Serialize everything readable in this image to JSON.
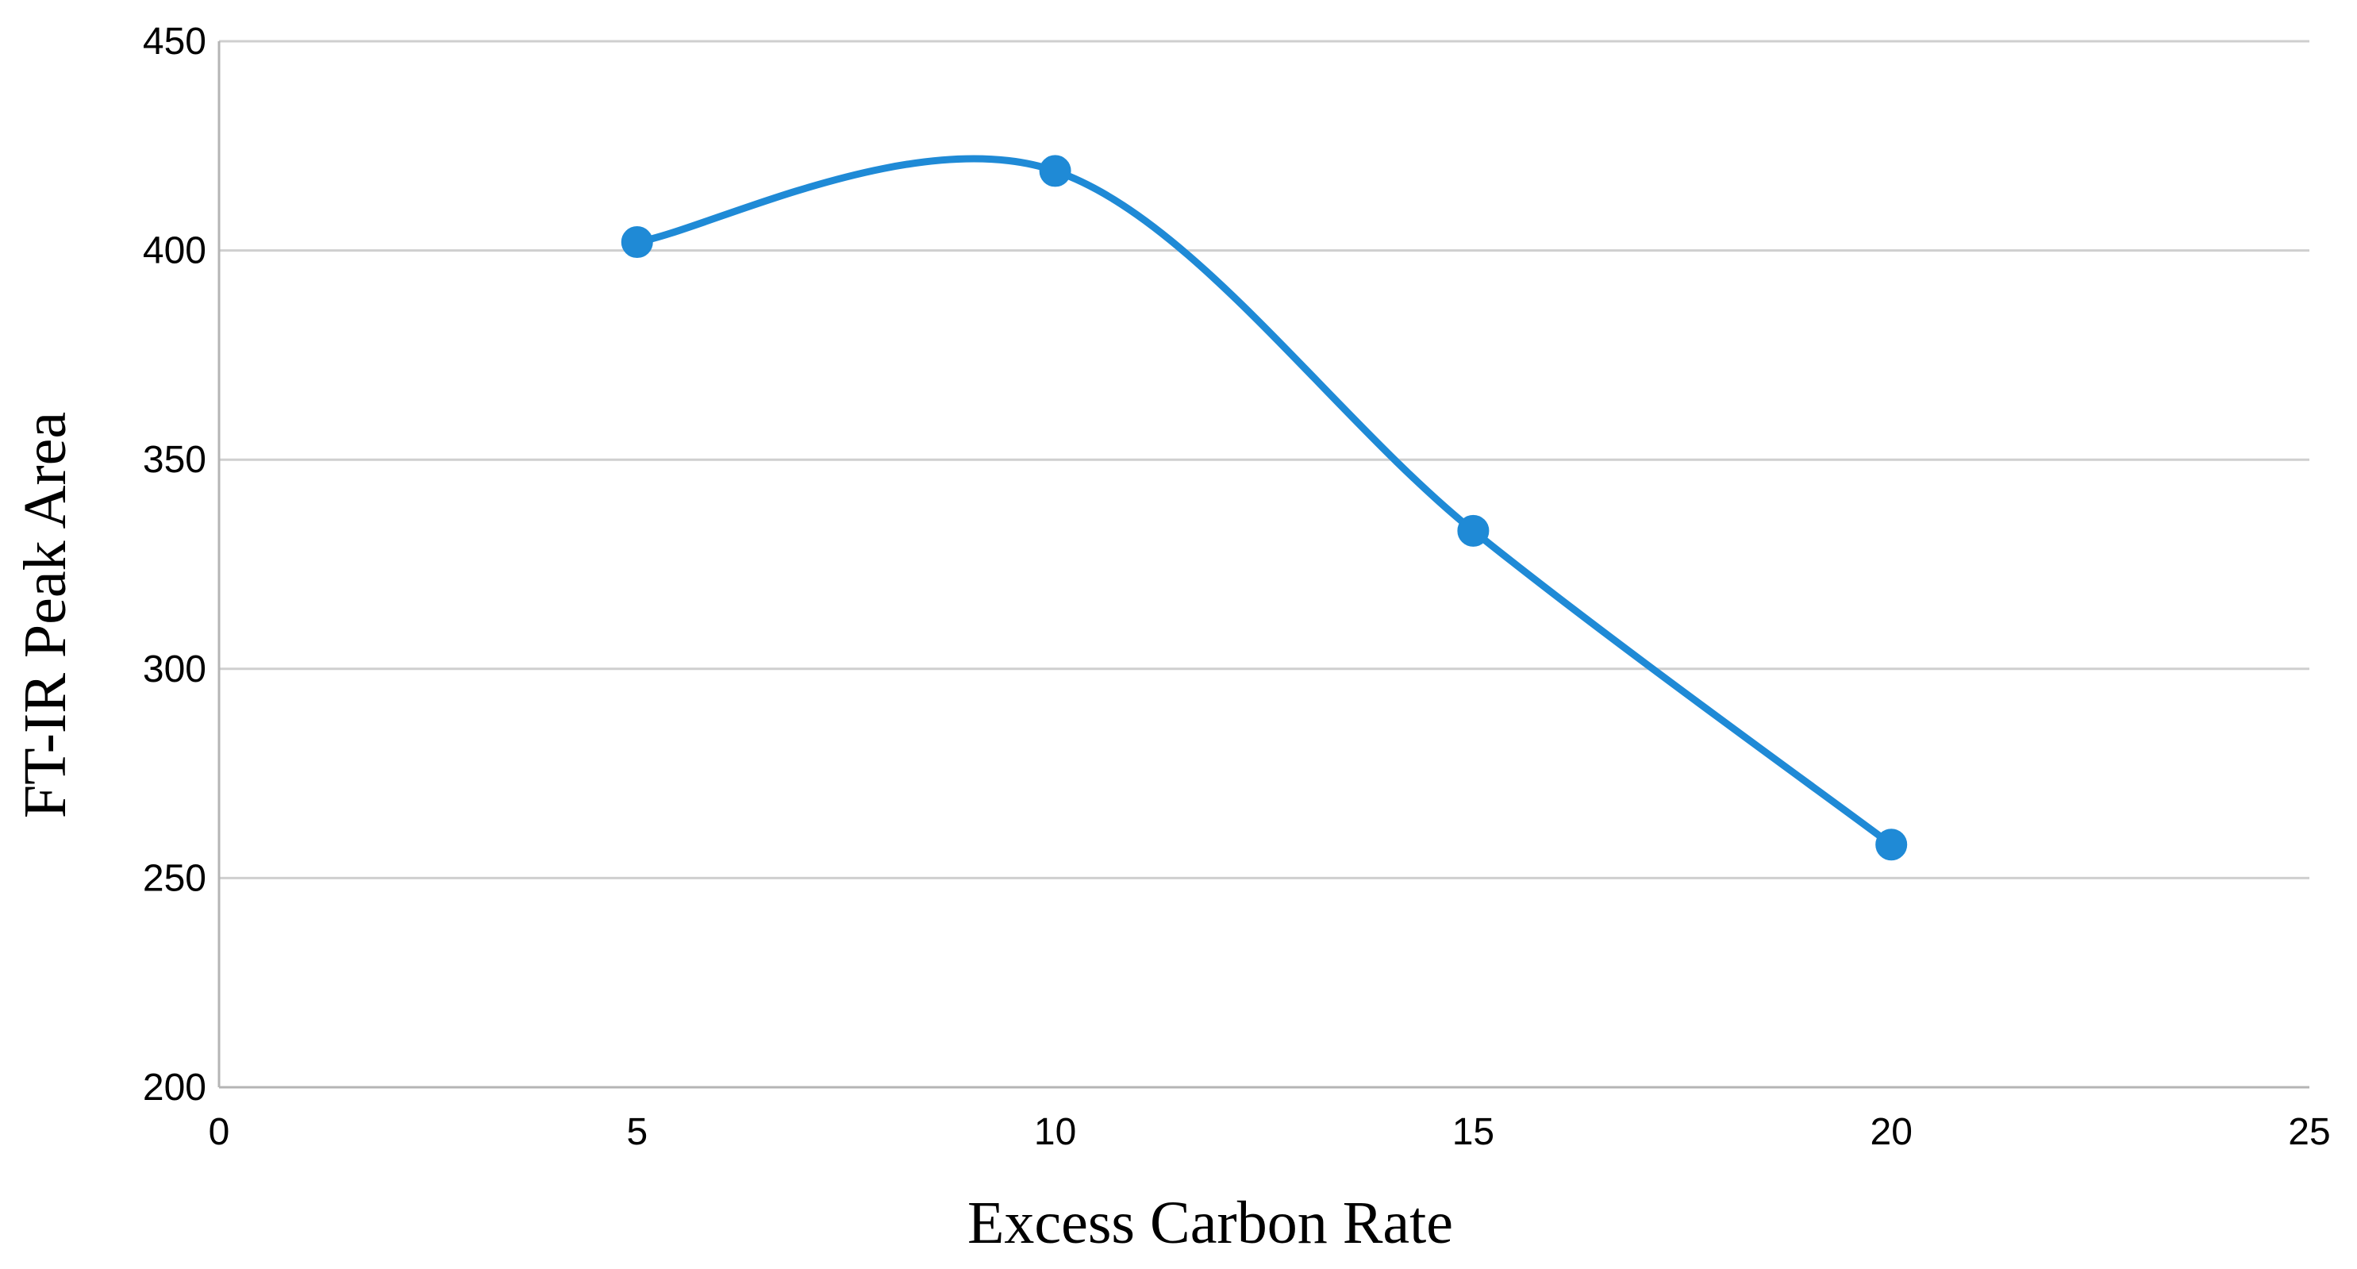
{
  "chart_data": {
    "type": "line",
    "title": "",
    "xlabel": "Excess Carbon Rate",
    "ylabel": "FT-IR Peak Area",
    "xlim": [
      0,
      25
    ],
    "ylim": [
      200,
      450
    ],
    "x_ticks": [
      "0",
      "5",
      "10",
      "15",
      "20",
      "25"
    ],
    "y_ticks": [
      "200",
      "250",
      "300",
      "350",
      "400",
      "450"
    ],
    "x_tick_values": [
      0,
      5,
      10,
      15,
      20,
      25
    ],
    "y_tick_values": [
      200,
      250,
      300,
      350,
      400,
      450
    ],
    "grid": "horizontal",
    "legend": "none",
    "smooth": true,
    "series": [
      {
        "x": [
          5,
          10,
          15,
          20
        ],
        "y": [
          402,
          419,
          333,
          258
        ],
        "color": "#1f8ad6"
      }
    ]
  }
}
